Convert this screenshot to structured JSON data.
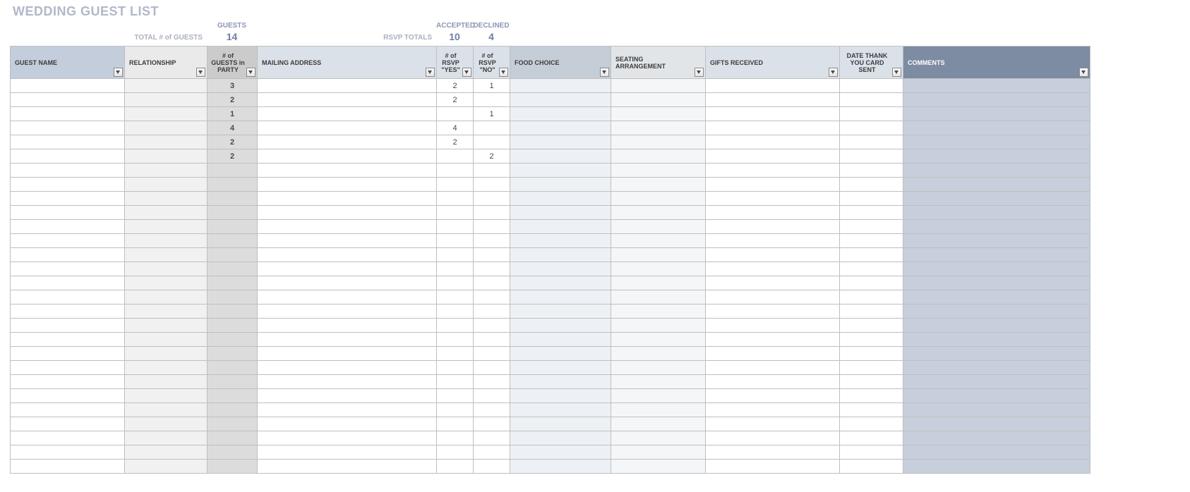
{
  "title": "WEDDING GUEST LIST",
  "summary": {
    "guests_label": "GUESTS",
    "total_guests_label": "TOTAL # of GUESTS",
    "total_guests_value": "14",
    "accepted_label": "ACCEPTED",
    "declined_label": "DECLINED",
    "rsvp_totals_label": "RSVP TOTALS",
    "accepted_value": "10",
    "declined_value": "4"
  },
  "columns": {
    "guest_name": "GUEST NAME",
    "relationship": "RELATIONSHIP",
    "guests_in_party": "# of GUESTS in PARTY",
    "mailing_address": "MAILING ADDRESS",
    "rsvp_yes": "# of RSVP \"YES\"",
    "rsvp_no": "# of RSVP \"NO\"",
    "food_choice": "FOOD CHOICE",
    "seating": "SEATING ARRANGEMENT",
    "gifts": "GIFTS RECEIVED",
    "thank_you": "DATE THANK YOU CARD SENT",
    "comments": "COMMENTS"
  },
  "rows": [
    {
      "party": "3",
      "yes": "2",
      "no": "1"
    },
    {
      "party": "2",
      "yes": "2",
      "no": ""
    },
    {
      "party": "1",
      "yes": "",
      "no": "1"
    },
    {
      "party": "4",
      "yes": "4",
      "no": ""
    },
    {
      "party": "2",
      "yes": "2",
      "no": ""
    },
    {
      "party": "2",
      "yes": "",
      "no": "2"
    },
    {
      "party": "",
      "yes": "",
      "no": ""
    },
    {
      "party": "",
      "yes": "",
      "no": ""
    },
    {
      "party": "",
      "yes": "",
      "no": ""
    },
    {
      "party": "",
      "yes": "",
      "no": ""
    },
    {
      "party": "",
      "yes": "",
      "no": ""
    },
    {
      "party": "",
      "yes": "",
      "no": ""
    },
    {
      "party": "",
      "yes": "",
      "no": ""
    },
    {
      "party": "",
      "yes": "",
      "no": ""
    },
    {
      "party": "",
      "yes": "",
      "no": ""
    },
    {
      "party": "",
      "yes": "",
      "no": ""
    },
    {
      "party": "",
      "yes": "",
      "no": ""
    },
    {
      "party": "",
      "yes": "",
      "no": ""
    },
    {
      "party": "",
      "yes": "",
      "no": ""
    },
    {
      "party": "",
      "yes": "",
      "no": ""
    },
    {
      "party": "",
      "yes": "",
      "no": ""
    },
    {
      "party": "",
      "yes": "",
      "no": ""
    },
    {
      "party": "",
      "yes": "",
      "no": ""
    },
    {
      "party": "",
      "yes": "",
      "no": ""
    },
    {
      "party": "",
      "yes": "",
      "no": ""
    },
    {
      "party": "",
      "yes": "",
      "no": ""
    },
    {
      "party": "",
      "yes": "",
      "no": ""
    },
    {
      "party": "",
      "yes": "",
      "no": ""
    }
  ],
  "colors": {
    "title": "#b0b8c9",
    "summary_label": "#a9b0bf",
    "summary_header": "#8b97b6",
    "summary_value": "#6b7ea8",
    "border": "#bfbfbf",
    "h_guestname": "#c4cddc",
    "h_relationship": "#eaeaea",
    "h_party": "#cacbca",
    "h_mailing": "#dae1e8",
    "h_food": "#c5cdd7",
    "h_seating": "#e2e5e8",
    "h_comments": "#7d8ba3",
    "c_relationship": "#f1f1f1",
    "c_party": "#dcdcdc",
    "c_food": "#edf1f5",
    "c_seating": "#f4f6f8",
    "c_comments": "#c7cfdc"
  }
}
